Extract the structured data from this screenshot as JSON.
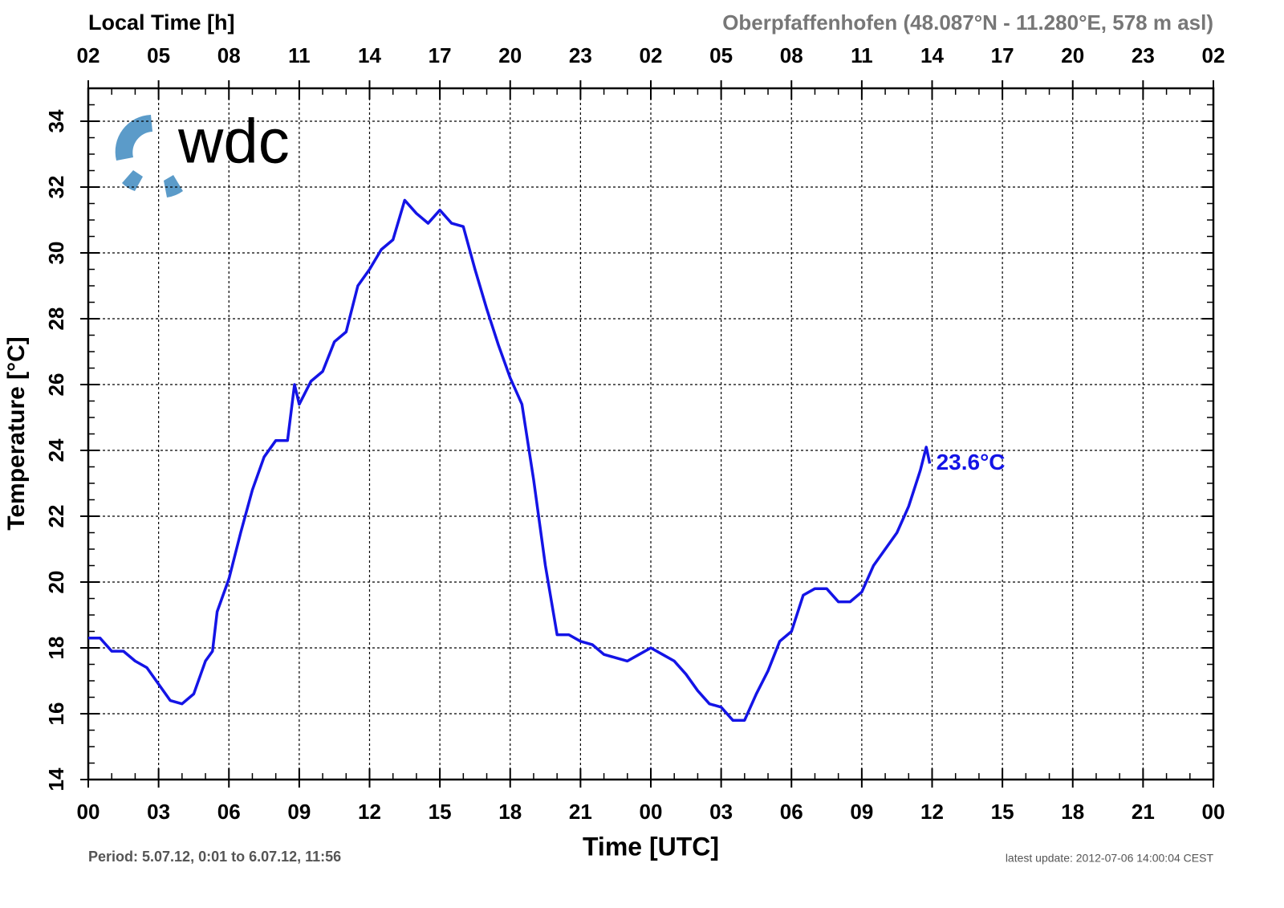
{
  "chart_data": {
    "type": "line",
    "top_axis_title": "Local Time [h]",
    "station": "Oberpfaffenhofen (48.087°N - 11.280°E, 578 m asl)",
    "ylabel": "Temperature [°C]",
    "xlabel": "Time [UTC]",
    "period": "Period: 5.07.12, 0:01 to 6.07.12, 11:56",
    "update": "latest update: 2012-07-06 14:00:04 CEST",
    "logo": "wdc",
    "annotation": "23.6°C",
    "color": "#1414e6",
    "grid": true,
    "xlim": [
      0,
      48
    ],
    "ylim": [
      14,
      35
    ],
    "x2lim": [
      2,
      50
    ],
    "yticks": [
      14,
      16,
      18,
      20,
      22,
      24,
      26,
      28,
      30,
      32,
      34
    ],
    "xticks": [
      {
        "value": 0,
        "label": "00"
      },
      {
        "value": 3,
        "label": "03"
      },
      {
        "value": 6,
        "label": "06"
      },
      {
        "value": 9,
        "label": "09"
      },
      {
        "value": 12,
        "label": "12"
      },
      {
        "value": 15,
        "label": "15"
      },
      {
        "value": 18,
        "label": "18"
      },
      {
        "value": 21,
        "label": "21"
      },
      {
        "value": 24,
        "label": "00"
      },
      {
        "value": 27,
        "label": "03"
      },
      {
        "value": 30,
        "label": "06"
      },
      {
        "value": 33,
        "label": "09"
      },
      {
        "value": 36,
        "label": "12"
      },
      {
        "value": 39,
        "label": "15"
      },
      {
        "value": 42,
        "label": "18"
      },
      {
        "value": 45,
        "label": "21"
      },
      {
        "value": 48,
        "label": "00"
      }
    ],
    "x2ticks": [
      {
        "value": 2,
        "label": "02"
      },
      {
        "value": 5,
        "label": "05"
      },
      {
        "value": 8,
        "label": "08"
      },
      {
        "value": 11,
        "label": "11"
      },
      {
        "value": 14,
        "label": "14"
      },
      {
        "value": 17,
        "label": "17"
      },
      {
        "value": 20,
        "label": "20"
      },
      {
        "value": 23,
        "label": "23"
      },
      {
        "value": 26,
        "label": "02"
      },
      {
        "value": 29,
        "label": "05"
      },
      {
        "value": 32,
        "label": "08"
      },
      {
        "value": 35,
        "label": "11"
      },
      {
        "value": 38,
        "label": "14"
      },
      {
        "value": 41,
        "label": "17"
      },
      {
        "value": 44,
        "label": "20"
      },
      {
        "value": 47,
        "label": "23"
      },
      {
        "value": 50,
        "label": "02"
      }
    ],
    "x": [
      0,
      0.5,
      1,
      1.5,
      2,
      2.5,
      3,
      3.5,
      4,
      4.5,
      5,
      5.3,
      5.5,
      6,
      6.5,
      7,
      7.5,
      8,
      8.5,
      8.8,
      9,
      9.5,
      10,
      10.5,
      11,
      11.5,
      12,
      12.5,
      13,
      13.5,
      14,
      14.5,
      15,
      15.5,
      16,
      16.5,
      17,
      17.5,
      18,
      18.5,
      19,
      19.5,
      20,
      20.5,
      21,
      21.5,
      22,
      22.5,
      23,
      23.5,
      24,
      24.5,
      25,
      25.5,
      26,
      26.5,
      27,
      27.5,
      28,
      28.5,
      29,
      29.5,
      30,
      30.5,
      31,
      31.5,
      32,
      32.5,
      33,
      33.5,
      34,
      34.5,
      35,
      35.5,
      35.75,
      35.9
    ],
    "values": [
      18.3,
      18.3,
      17.9,
      17.9,
      17.6,
      17.4,
      16.9,
      16.4,
      16.3,
      16.6,
      17.6,
      17.9,
      19.1,
      20.1,
      21.5,
      22.8,
      23.8,
      24.3,
      24.3,
      26.0,
      25.4,
      26.1,
      26.4,
      27.3,
      27.6,
      29.0,
      29.5,
      30.1,
      30.4,
      31.6,
      31.2,
      30.9,
      31.3,
      30.9,
      30.8,
      29.5,
      28.3,
      27.2,
      26.2,
      25.4,
      23.1,
      20.5,
      18.4,
      18.4,
      18.2,
      18.1,
      17.8,
      17.7,
      17.6,
      17.8,
      18.0,
      17.8,
      17.6,
      17.2,
      16.7,
      16.3,
      16.2,
      15.8,
      15.8,
      16.6,
      17.3,
      18.2,
      18.5,
      19.6,
      19.8,
      19.8,
      19.4,
      19.4,
      19.7,
      20.5,
      21.0,
      21.5,
      22.3,
      23.4,
      24.1,
      23.6
    ]
  }
}
